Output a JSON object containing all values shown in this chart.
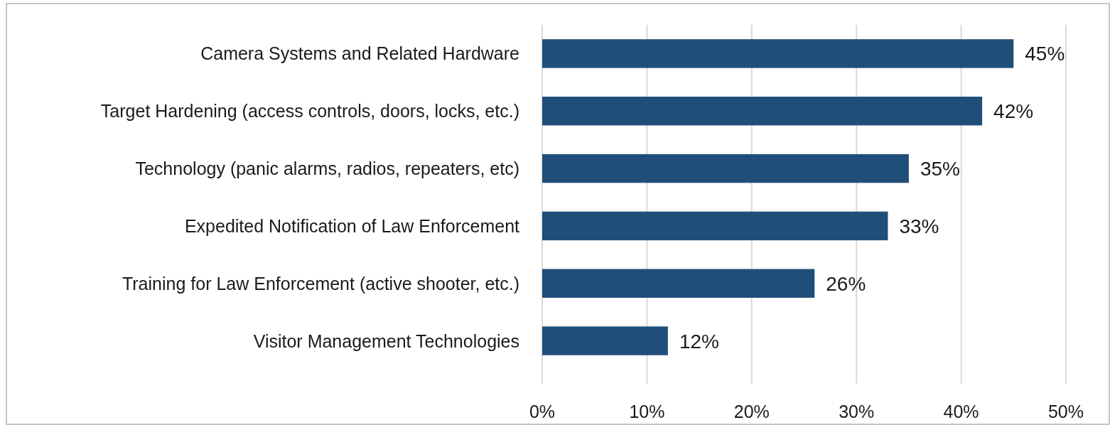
{
  "chart_data": {
    "type": "bar",
    "orientation": "horizontal",
    "categories": [
      "Camera Systems and Related Hardware",
      "Target Hardening (access controls, doors, locks, etc.)",
      "Technology (panic alarms, radios, repeaters, etc)",
      "Expedited Notification of Law Enforcement",
      "Training for Law Enforcement (active shooter, etc.)",
      "Visitor Management Technologies"
    ],
    "values": [
      45,
      42,
      35,
      33,
      26,
      12
    ],
    "value_labels": [
      "45%",
      "42%",
      "35%",
      "33%",
      "26%",
      "12%"
    ],
    "color": "#1f4e79",
    "xlim": [
      0,
      50
    ],
    "xticks": [
      {
        "value": 0,
        "label": "0%"
      },
      {
        "value": 10,
        "label": "10%"
      },
      {
        "value": 20,
        "label": "20%"
      },
      {
        "value": 30,
        "label": "30%"
      },
      {
        "value": 40,
        "label": "40%"
      },
      {
        "value": 50,
        "label": "50%"
      }
    ],
    "grid": "x"
  }
}
